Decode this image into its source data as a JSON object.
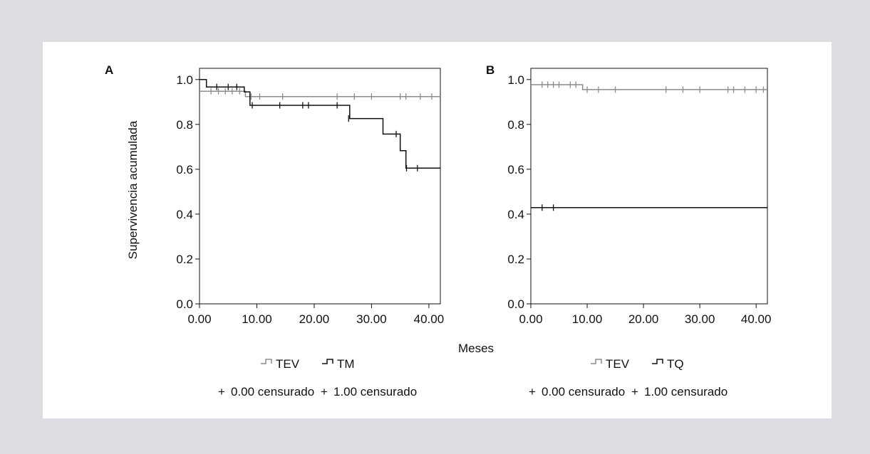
{
  "figure": {
    "shared_xlabel": "Meses",
    "shared_ylabel": "Supervivencia acumulada"
  },
  "chart_data": [
    {
      "type": "line",
      "panel_label": "A",
      "xlabel": "",
      "ylabel": "Supervivencia acumulada",
      "xlim": [
        0,
        42
      ],
      "ylim": [
        0,
        1.05
      ],
      "x_ticks": [
        "0.00",
        "10.00",
        "20.00",
        "30.00",
        "40.00"
      ],
      "y_ticks": [
        "0.0",
        "0.2",
        "0.4",
        "0.6",
        "0.8",
        "1.0"
      ],
      "x_tick_values": [
        0,
        10,
        20,
        30,
        40
      ],
      "y_tick_values": [
        0,
        0.2,
        0.4,
        0.6,
        0.8,
        1.0
      ],
      "legend": {
        "series_labels": [
          "TEV",
          "TM"
        ],
        "censor_labels": [
          "0.00 censurado",
          "1.00 censurado"
        ],
        "placement": "bottom"
      },
      "series": [
        {
          "name": "TEV",
          "color": "#8c8c8c",
          "steps": [
            [
              0,
              0.948
            ],
            [
              8,
              0.948
            ],
            [
              8,
              0.924
            ],
            [
              42,
              0.924
            ]
          ],
          "censored": [
            [
              2,
              0.948
            ],
            [
              3.3,
              0.948
            ],
            [
              4.5,
              0.948
            ],
            [
              5.7,
              0.948
            ],
            [
              7,
              0.948
            ],
            [
              9,
              0.924
            ],
            [
              10.5,
              0.924
            ],
            [
              14.5,
              0.924
            ],
            [
              24,
              0.924
            ],
            [
              27,
              0.924
            ],
            [
              30,
              0.924
            ],
            [
              35,
              0.924
            ],
            [
              36,
              0.924
            ],
            [
              38.5,
              0.924
            ],
            [
              40.5,
              0.924
            ]
          ]
        },
        {
          "name": "TM",
          "color": "#111111",
          "steps": [
            [
              0,
              1.0
            ],
            [
              1.2,
              1.0
            ],
            [
              1.2,
              0.967
            ],
            [
              7.8,
              0.967
            ],
            [
              7.8,
              0.945
            ],
            [
              8.8,
              0.945
            ],
            [
              8.8,
              0.885
            ],
            [
              26.2,
              0.885
            ],
            [
              26.2,
              0.826
            ],
            [
              32,
              0.826
            ],
            [
              32,
              0.757
            ],
            [
              35,
              0.757
            ],
            [
              35,
              0.683
            ],
            [
              36,
              0.683
            ],
            [
              36,
              0.605
            ],
            [
              42,
              0.605
            ]
          ]
        }
      ],
      "censored_series_1": [
        [
          3,
          0.967
        ],
        [
          5,
          0.967
        ],
        [
          6.5,
          0.967
        ],
        [
          9.2,
          0.885
        ],
        [
          14,
          0.885
        ],
        [
          18,
          0.885
        ],
        [
          19,
          0.885
        ],
        [
          24,
          0.885
        ],
        [
          26,
          0.826
        ],
        [
          34.3,
          0.757
        ],
        [
          36.1,
          0.605
        ],
        [
          38,
          0.605
        ]
      ]
    },
    {
      "type": "line",
      "panel_label": "B",
      "xlabel": "",
      "ylabel": "",
      "xlim": [
        0,
        42
      ],
      "ylim": [
        0,
        1.05
      ],
      "x_ticks": [
        "0.00",
        "10.00",
        "20.00",
        "30.00",
        "40.00"
      ],
      "y_ticks": [
        "0.0",
        "0.2",
        "0.4",
        "0.6",
        "0.8",
        "1.0"
      ],
      "x_tick_values": [
        0,
        10,
        20,
        30,
        40
      ],
      "y_tick_values": [
        0,
        0.2,
        0.4,
        0.6,
        0.8,
        1.0
      ],
      "legend": {
        "series_labels": [
          "TEV",
          "TQ"
        ],
        "censor_labels": [
          "0.00 censurado",
          "1.00 censurado"
        ],
        "placement": "bottom"
      },
      "series": [
        {
          "name": "TEV",
          "color": "#8c8c8c",
          "steps": [
            [
              0,
              0.977
            ],
            [
              9.2,
              0.977
            ],
            [
              9.2,
              0.955
            ],
            [
              42,
              0.955
            ]
          ],
          "censored": [
            [
              2,
              0.977
            ],
            [
              3,
              0.977
            ],
            [
              4,
              0.977
            ],
            [
              5,
              0.977
            ],
            [
              7,
              0.977
            ],
            [
              8,
              0.977
            ],
            [
              10,
              0.955
            ],
            [
              12,
              0.955
            ],
            [
              15,
              0.955
            ],
            [
              24,
              0.955
            ],
            [
              27,
              0.955
            ],
            [
              30,
              0.955
            ],
            [
              35,
              0.955
            ],
            [
              36,
              0.955
            ],
            [
              38,
              0.955
            ],
            [
              40,
              0.955
            ],
            [
              41.3,
              0.955
            ]
          ]
        },
        {
          "name": "TQ",
          "color": "#111111",
          "steps": [
            [
              0,
              0.429
            ],
            [
              42,
              0.429
            ]
          ]
        }
      ],
      "censored_series_1": [
        [
          2,
          0.429
        ],
        [
          4,
          0.429
        ]
      ]
    }
  ]
}
